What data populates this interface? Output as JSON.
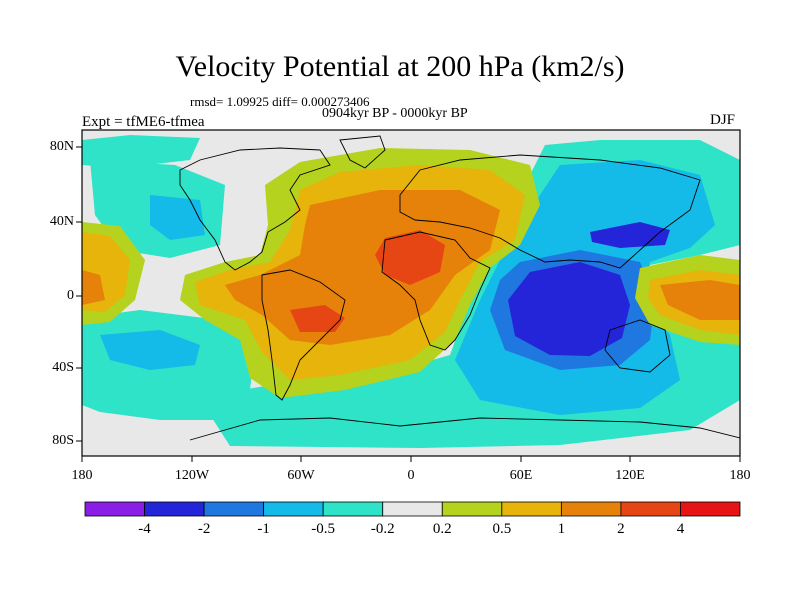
{
  "title": "Velocity Potential at 200 hPa (km2/s)",
  "stats": "rmsd= 1.09925 diff= 0.000273406",
  "period": "0904kyr BP - 0000kyr BP",
  "experiment": "Expt = tfME6-tfmea",
  "season": "DJF",
  "axes": {
    "lat_labels": [
      "80N",
      "40N",
      "0",
      "40S",
      "80S"
    ],
    "lon_labels": [
      "180",
      "120W",
      "60W",
      "0",
      "60E",
      "120E",
      "180"
    ]
  },
  "colorbar": {
    "labels": [
      "-4",
      "-2",
      "-1",
      "-0.5",
      "-0.2",
      "0.2",
      "0.5",
      "1",
      "2",
      "4"
    ],
    "colors": [
      "#8a1ee6",
      "#2424d8",
      "#1e78e0",
      "#14bae8",
      "#2ee3c8",
      "#e8e8e8",
      "#b4d21e",
      "#e6b40a",
      "#e6820a",
      "#e64614",
      "#e61414"
    ]
  },
  "palette": {
    "neutral": "#e8e8e8",
    "pos02": "#b4d21e",
    "pos05": "#e6b40a",
    "pos1": "#e6820a",
    "pos2": "#e64614",
    "neg02": "#2ee3c8",
    "neg05": "#14bae8",
    "neg1": "#1e78e0",
    "neg2": "#2424d8"
  }
}
